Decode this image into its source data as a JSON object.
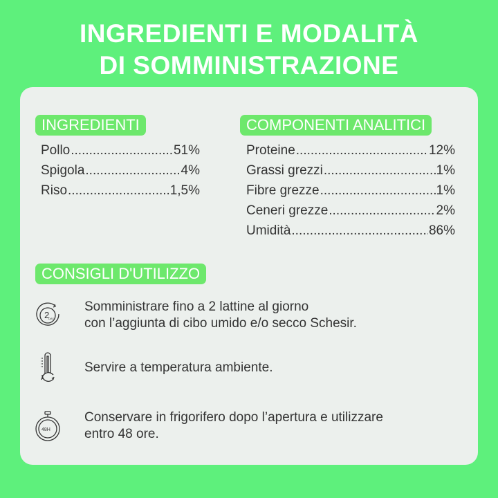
{
  "title": {
    "line1": "INGREDIENTI E MODALITÀ",
    "line2": "DI SOMMINISTRAZIONE"
  },
  "ingredients": {
    "heading": "INGREDIENTI",
    "items": [
      {
        "name": "Pollo",
        "value": "51%"
      },
      {
        "name": "Spigola",
        "value": "4%"
      },
      {
        "name": "Riso",
        "value": "1,5%"
      }
    ]
  },
  "analytics": {
    "heading": "COMPONENTI ANALITICI",
    "items": [
      {
        "name": "Proteine",
        "value": "12%"
      },
      {
        "name": "Grassi grezzi",
        "value": "1%"
      },
      {
        "name": "Fibre grezze",
        "value": "1%"
      },
      {
        "name": "Ceneri grezze",
        "value": "2%"
      },
      {
        "name": "Umidità",
        "value": "86%"
      }
    ]
  },
  "usage": {
    "heading": "CONSIGLI D'UTILIZZO",
    "tips": [
      {
        "icon": "two-per-day-icon",
        "icon_text": "2",
        "icon_sub": "DAY",
        "text": "Somministrare fino a 2 lattine al giorno\ncon l’aggiunta di cibo umido e/o secco Schesir."
      },
      {
        "icon": "thermometer-icon",
        "text": "Servire a temperatura ambiente."
      },
      {
        "icon": "stopwatch-48h-icon",
        "icon_text": "48H",
        "text": "Conservare in frigorifero dopo l’apertura e utilizzare\nentro 48 ore."
      }
    ]
  },
  "colors": {
    "background": "#5ef07c",
    "badge": "#6de86c",
    "card": "#ecf0ed"
  }
}
